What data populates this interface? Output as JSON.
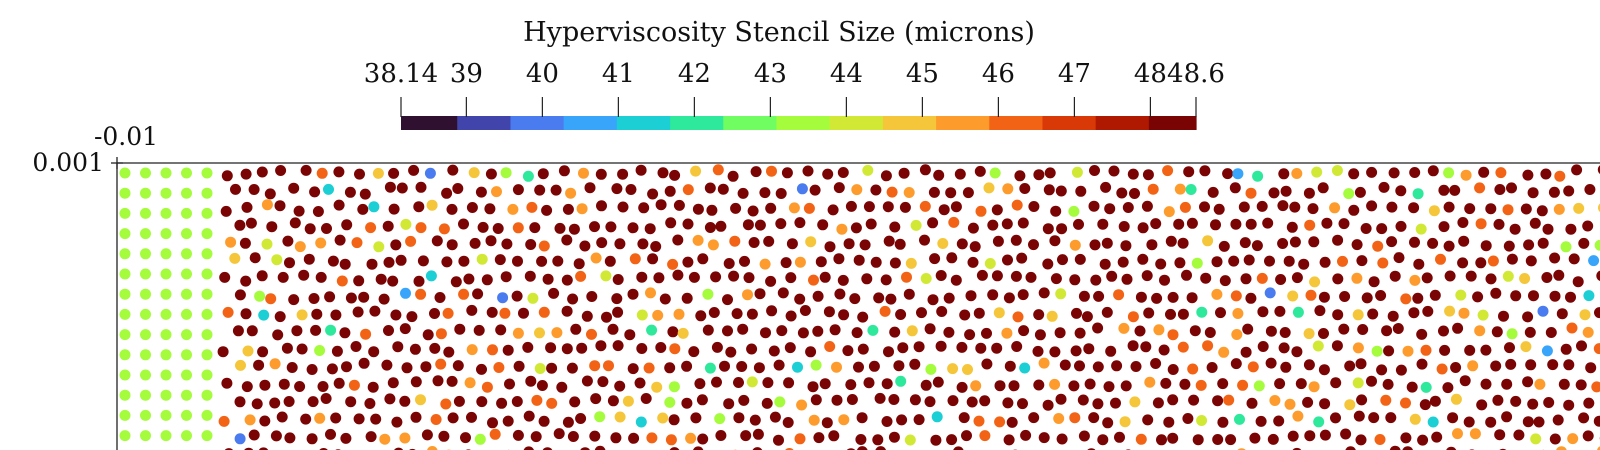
{
  "chart_data": {
    "type": "scatter",
    "title": "Hyperviscosity Stencil Size (microns)",
    "xlabel": "",
    "ylabel": "",
    "x_tick_labels": [
      "-0.01"
    ],
    "y_tick_labels": [
      "0.001"
    ],
    "colorbar": {
      "range": [
        38.14,
        48.6
      ],
      "ticks": [
        38.14,
        39,
        40,
        41,
        42,
        43,
        44,
        45,
        46,
        47,
        48,
        48.6
      ],
      "tick_labels": [
        "38.14",
        "39",
        "40",
        "41",
        "42",
        "43",
        "44",
        "45",
        "46",
        "47",
        "48",
        "48.6"
      ],
      "bands": [
        {
          "from": 38.14,
          "to": 38.88,
          "color": "#301030"
        },
        {
          "from": 38.88,
          "to": 39.58,
          "color": "#4145ab"
        },
        {
          "from": 39.58,
          "to": 40.28,
          "color": "#4a7bef"
        },
        {
          "from": 40.28,
          "to": 40.98,
          "color": "#38a5fb"
        },
        {
          "from": 40.98,
          "to": 41.68,
          "color": "#1bcfd4"
        },
        {
          "from": 41.68,
          "to": 42.38,
          "color": "#2ee89c"
        },
        {
          "from": 42.38,
          "to": 43.08,
          "color": "#6ffd62"
        },
        {
          "from": 43.08,
          "to": 43.78,
          "color": "#a4fc3c"
        },
        {
          "from": 43.78,
          "to": 44.48,
          "color": "#d1e935"
        },
        {
          "from": 44.48,
          "to": 45.18,
          "color": "#f5c63a"
        },
        {
          "from": 45.18,
          "to": 45.88,
          "color": "#fe9b2d"
        },
        {
          "from": 45.88,
          "to": 46.58,
          "color": "#f36315"
        },
        {
          "from": 46.58,
          "to": 47.28,
          "color": "#d93807"
        },
        {
          "from": 47.28,
          "to": 47.98,
          "color": "#b01901"
        },
        {
          "from": 47.98,
          "to": 48.6,
          "color": "#7a0403"
        }
      ]
    },
    "series": [
      {
        "description": "uniform grid region",
        "value": 43.5,
        "columns": 5,
        "rows": 15
      },
      {
        "description": "scattered node region",
        "dominant_value": 48.6,
        "approx_count": 1100,
        "outliers": [
          40.0,
          40.6,
          41.3,
          41.5,
          42.2,
          43.5,
          44.2,
          45.0,
          45.6,
          46.3
        ]
      }
    ],
    "grid": false
  }
}
